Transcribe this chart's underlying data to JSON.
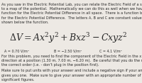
{
  "bg_color": "#ede9e4",
  "text_color": "#2a2a2a",
  "body_text_top": "As you saw in the Electric Potential Lab, you can relate the Electric Field of a system\nto a map of the potential.  Mathematically we can do this as well when we have a\nfunction for the Electric Potential Difference in all space.  There is a function below\nfor the Electric Potential Difference.  The letters A, B and C are constant values\nshown below the function.",
  "formula": "$\\Delta V = Ax^2y^2 + Bxz^3 - Cxyz^2$",
  "constants_a": "A = 0.70 V/m⁴",
  "constants_b": "B = −2.50 V/m⁴",
  "constants_c": "C = 4.1 V/m⁴",
  "body_text_bottom1": "For this problem, you need to find the component of the Electric Field in the x\ndirection at a position (1.30 m, 7.00 m, −6.20 m).  Be careful that you do the math in\nthe correct order (i.e. - don’t plug in the position first).",
  "body_text_bottom2": "Make sure to put units with your answer and include a negative sign if your answer\ngives you one.  Make sure to give your answer with an appropriate number of\nsignificant figures.",
  "small_fs": 3.6,
  "formula_fs": 9.0,
  "const_fs": 3.5
}
